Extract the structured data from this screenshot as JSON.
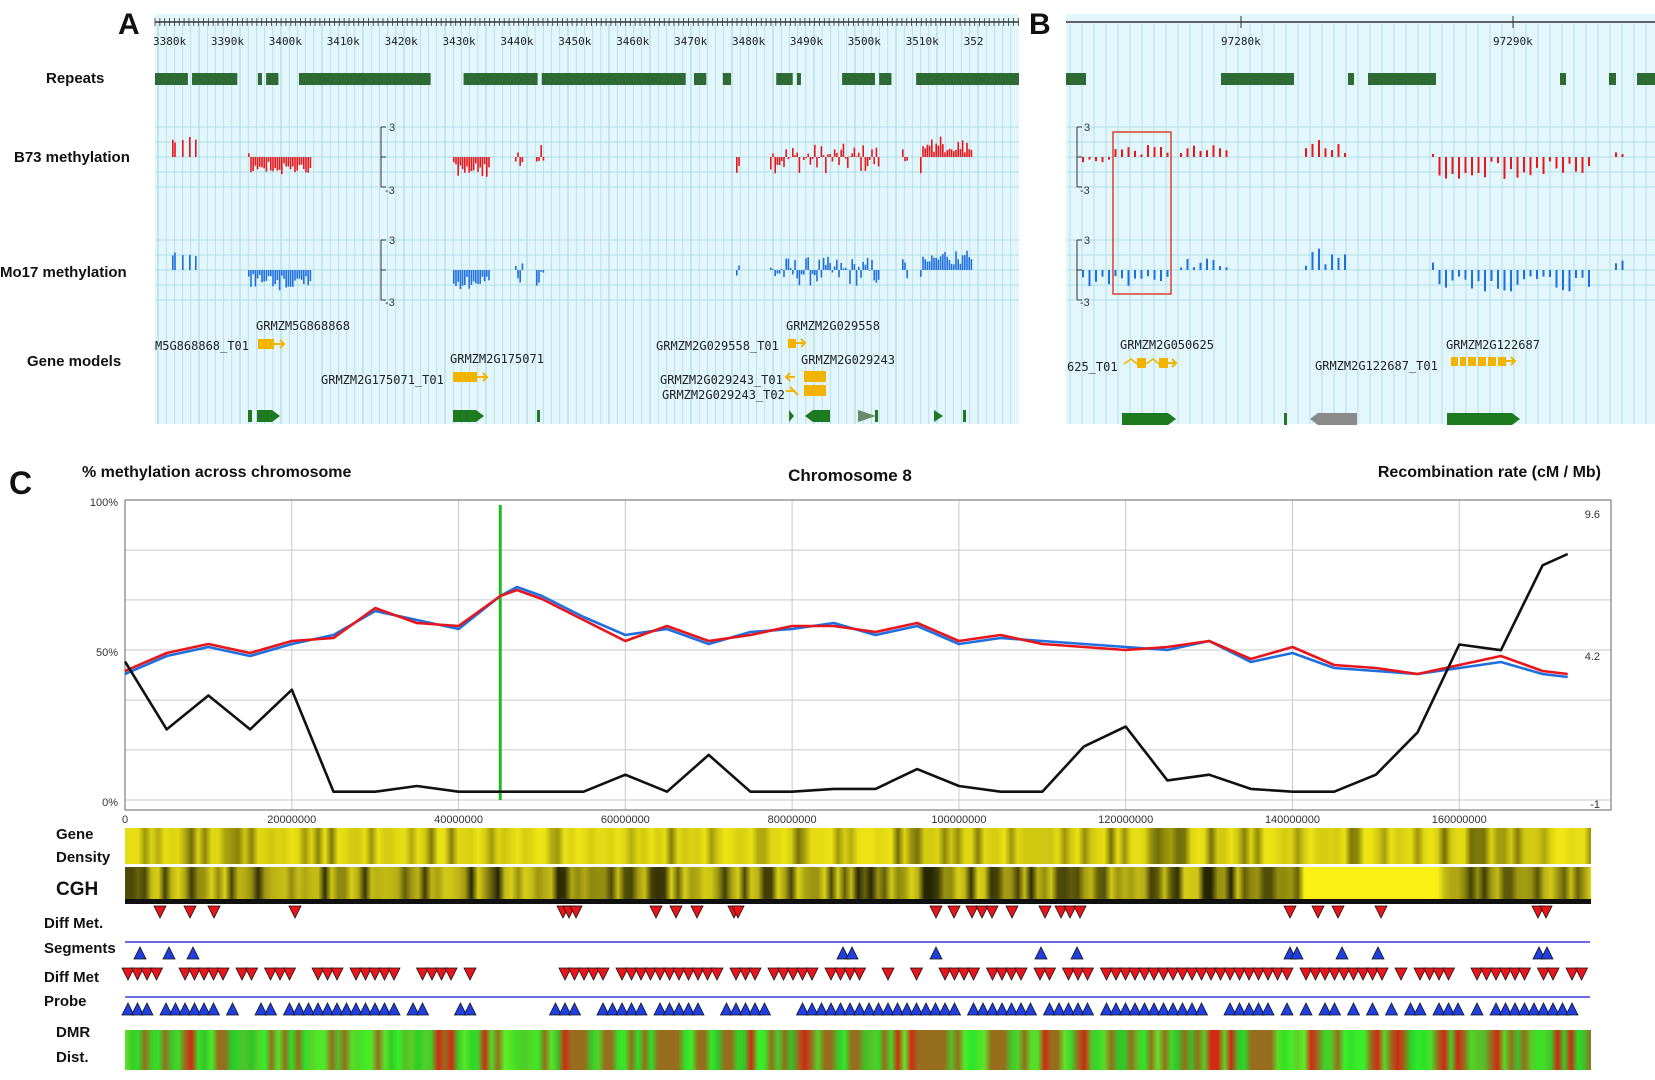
{
  "panel_labels": {
    "a": "A",
    "b": "B",
    "c": "C"
  },
  "track_labels": {
    "repeats": "Repeats",
    "b73": "B73 methylation",
    "mo17": "Mo17 methylation",
    "genes": "Gene models"
  },
  "scale_labels": {
    "top": "3",
    "bottom": "-3"
  },
  "colors": {
    "repeat": "#2e6b34",
    "b73": "#e8161b",
    "mo17": "#1e6fe0",
    "gene": "#f2b400",
    "gene_block": "#1e7a1e",
    "gene_grey": "#8a8a8a",
    "grid_bg": "#e3f6fb",
    "grid_line": "#9fd6e2",
    "box": "#d9402f"
  },
  "panelA": {
    "ticks": [
      "3380k",
      "3390k",
      "3400k",
      "3410k",
      "3420k",
      "3430k",
      "3440k",
      "3450k",
      "3460k",
      "3470k",
      "3480k",
      "3490k",
      "3500k",
      "3510k",
      "352"
    ],
    "repeat_blocks": [
      [
        0,
        8
      ],
      [
        9,
        20
      ],
      [
        25,
        26
      ],
      [
        27,
        30
      ],
      [
        35,
        67
      ],
      [
        75,
        93
      ],
      [
        94,
        129
      ],
      [
        131,
        134
      ],
      [
        138,
        140
      ],
      [
        151,
        155
      ],
      [
        156,
        157
      ],
      [
        167,
        175
      ],
      [
        176,
        179
      ],
      [
        185,
        210
      ]
    ],
    "genes": [
      {
        "name": "GRMZM5G868868",
        "transcript": "M5G868868_T01"
      },
      {
        "name": "GRMZM2G175071",
        "transcript": "GRMZM2G175071_T01"
      },
      {
        "name": "GRMZM2G029558",
        "transcript": "GRMZM2G029558_T01"
      },
      {
        "name": "GRMZM2G029243",
        "transcript": "GRMZM2G029243_T01"
      },
      {
        "name": "",
        "transcript": "GRMZM2G029243_T02"
      }
    ]
  },
  "panelB": {
    "ticks": [
      "97280k",
      "97290k"
    ],
    "genes": [
      {
        "name": "GRMZM2G050625",
        "transcript": "625_T01"
      },
      {
        "name": "GRMZM2G122687",
        "transcript": "GRMZM2G122687_T01"
      }
    ]
  },
  "panelC": {
    "left_title": "% methylation across chromosome",
    "center_title": "Chromosome 8",
    "right_title": "Recombination rate (cM / Mb)",
    "y_left_ticks": [
      "100%",
      "50%",
      "0%"
    ],
    "y_right_ticks": [
      "9.6",
      "4.2",
      "-1"
    ],
    "x_ticks": [
      "0",
      "20000000",
      "40000000",
      "60000000",
      "80000000",
      "100000000",
      "120000000",
      "140000000",
      "160000000"
    ],
    "marker_line_x": 45000000,
    "row_labels": {
      "gene_density_1": "Gene",
      "gene_density_2": "Density",
      "cgh": "CGH",
      "diff_met": "Diff Met.",
      "segments": "Segments",
      "diff_met2": "Diff Met",
      "probe": "Probe",
      "dmr_1": "DMR",
      "dmr_2": "Dist."
    }
  },
  "chart_data": [
    {
      "type": "line",
      "title": "Chromosome 8",
      "xlabel": "",
      "ylabel": "% methylation across chromosome",
      "y2label": "Recombination rate (cM / Mb)",
      "xlim": [
        0,
        174000000
      ],
      "ylim": [
        0,
        100
      ],
      "y2lim": [
        -1,
        9.6
      ],
      "x": [
        0,
        5000000,
        10000000,
        15000000,
        20000000,
        25000000,
        30000000,
        35000000,
        40000000,
        45000000,
        47000000,
        50000000,
        55000000,
        60000000,
        65000000,
        70000000,
        75000000,
        80000000,
        85000000,
        90000000,
        95000000,
        100000000,
        105000000,
        110000000,
        115000000,
        120000000,
        125000000,
        130000000,
        135000000,
        140000000,
        145000000,
        150000000,
        155000000,
        160000000,
        165000000,
        170000000,
        173000000
      ],
      "series": [
        {
          "axis": "left",
          "values": [
            42,
            48,
            51,
            48,
            52,
            55,
            63,
            60,
            57,
            68,
            71,
            68,
            61,
            55,
            57,
            52,
            56,
            57,
            59,
            55,
            58,
            52,
            54,
            53,
            52,
            51,
            50,
            53,
            46,
            49,
            44,
            43,
            42,
            44,
            46,
            42,
            41
          ]
        },
        {
          "axis": "left",
          "values": [
            43,
            49,
            52,
            49,
            53,
            54,
            64,
            59,
            58,
            68,
            70,
            67,
            60,
            53,
            58,
            53,
            55,
            58,
            58,
            56,
            59,
            53,
            55,
            52,
            51,
            50,
            51,
            53,
            47,
            51,
            45,
            44,
            42,
            45,
            48,
            43,
            42
          ]
        },
        {
          "axis": "right",
          "values": [
            4.6,
            2.2,
            3.4,
            2.2,
            3.6,
            0,
            0,
            0.2,
            0,
            0,
            0,
            0,
            0,
            0.6,
            0,
            1.3,
            0,
            0,
            0.1,
            0.1,
            0.8,
            0.2,
            0,
            0,
            1.6,
            2.3,
            0.4,
            0.6,
            0.1,
            0,
            0,
            0.6,
            2.1,
            5.2,
            5.0,
            8.0,
            8.4
          ]
        }
      ]
    }
  ]
}
